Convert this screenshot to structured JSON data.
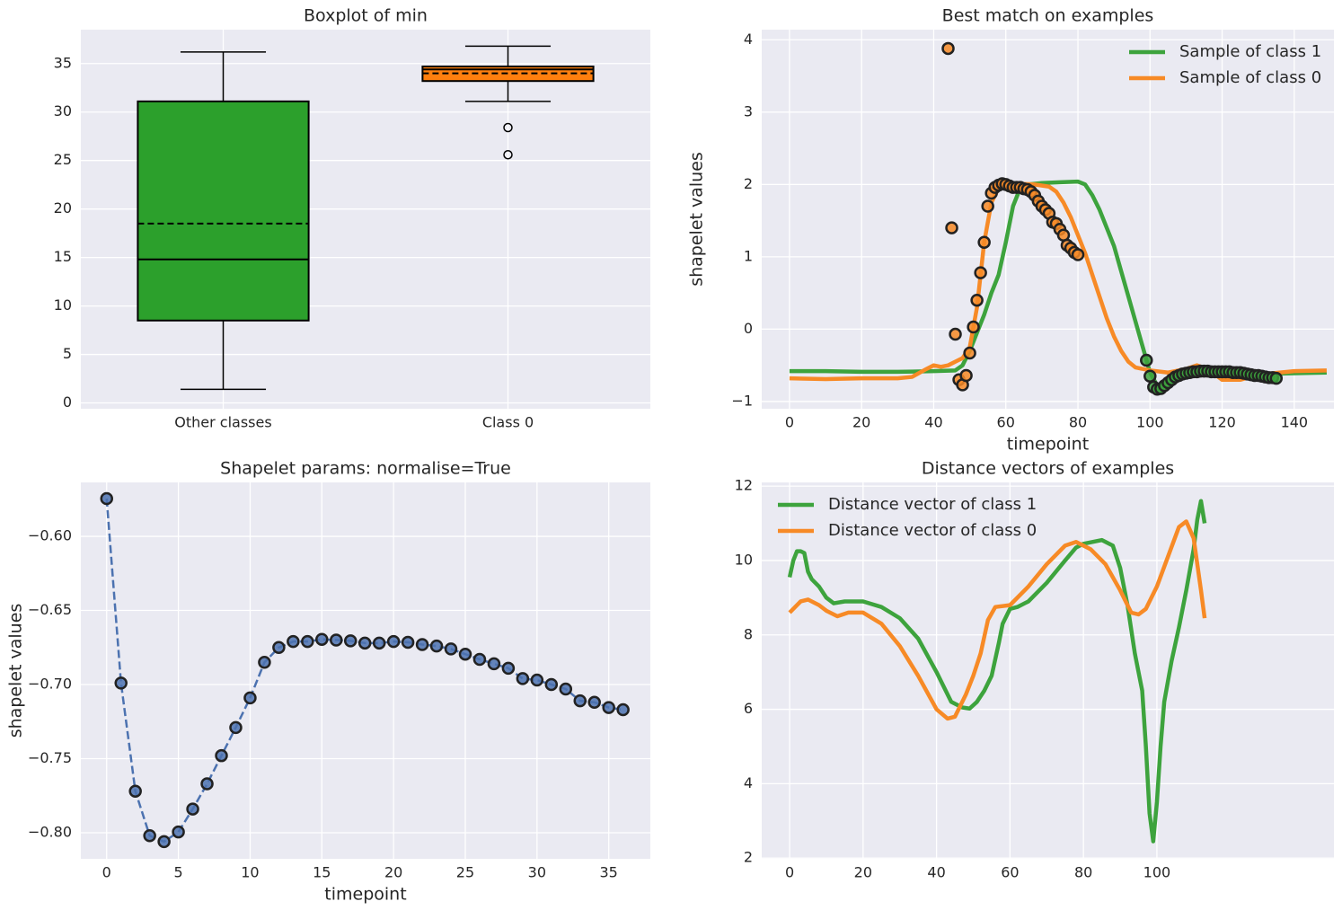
{
  "chart_data": [
    {
      "type": "box",
      "title": "Boxplot of min",
      "categories": [
        "Other classes",
        "Class 0"
      ],
      "boxes": [
        {
          "color": "#2ca02c",
          "whislo": 1.4,
          "q1": 8.5,
          "med": 14.8,
          "mean": 18.5,
          "q3": 31.1,
          "whishi": 36.2,
          "fliers": []
        },
        {
          "color": "#ff7f0e",
          "whislo": 31.1,
          "q1": 33.2,
          "med": 34.4,
          "mean": 34.0,
          "q3": 34.7,
          "whishi": 36.8,
          "fliers": [
            28.4,
            25.6
          ]
        }
      ],
      "ylim": [
        -0.6,
        38.5
      ],
      "yticks": [
        0,
        5,
        10,
        15,
        20,
        25,
        30,
        35
      ],
      "grid": true
    },
    {
      "type": "line",
      "title": "Best match on examples",
      "xlabel": "timepoint",
      "ylabel": "shapelet values",
      "legend": "upper right",
      "series": [
        {
          "name": "Sample of class 1",
          "kind": "line",
          "color": "#3da33d",
          "x": [
            0,
            10,
            20,
            30,
            40,
            46,
            48,
            50,
            52,
            54,
            56,
            58,
            60,
            62,
            64,
            66,
            70,
            75,
            80,
            82,
            84,
            86,
            88,
            90,
            92,
            94,
            96,
            98,
            100,
            102,
            104,
            106,
            110,
            115,
            120,
            125,
            130,
            140,
            149
          ],
          "values": [
            -0.58,
            -0.58,
            -0.59,
            -0.59,
            -0.58,
            -0.57,
            -0.5,
            -0.3,
            -0.05,
            0.2,
            0.5,
            0.75,
            1.2,
            1.7,
            1.95,
            2.0,
            2.02,
            2.03,
            2.04,
            2.0,
            1.85,
            1.65,
            1.4,
            1.15,
            0.8,
            0.45,
            0.1,
            -0.25,
            -0.6,
            -0.78,
            -0.75,
            -0.66,
            -0.62,
            -0.6,
            -0.6,
            -0.61,
            -0.62,
            -0.61,
            -0.6
          ]
        },
        {
          "name": "Sample of class 0",
          "kind": "line",
          "color": "#f78a26",
          "x": [
            0,
            10,
            20,
            30,
            34,
            38,
            40,
            42,
            44,
            46,
            48,
            50,
            52,
            54,
            56,
            58,
            60,
            64,
            68,
            72,
            74,
            76,
            78,
            80,
            82,
            84,
            86,
            88,
            90,
            92,
            94,
            96,
            100,
            105,
            110,
            113,
            116,
            120,
            125,
            130,
            140,
            149
          ],
          "values": [
            -0.68,
            -0.69,
            -0.68,
            -0.68,
            -0.66,
            -0.55,
            -0.5,
            -0.52,
            -0.5,
            -0.45,
            -0.4,
            -0.25,
            0.3,
            1.2,
            1.75,
            1.95,
            2.0,
            2.01,
            2.0,
            1.97,
            1.9,
            1.75,
            1.55,
            1.3,
            1.05,
            0.75,
            0.45,
            0.15,
            -0.1,
            -0.3,
            -0.45,
            -0.53,
            -0.57,
            -0.6,
            -0.55,
            -0.5,
            -0.55,
            -0.7,
            -0.7,
            -0.63,
            -0.58,
            -0.57
          ]
        },
        {
          "kind": "scatter",
          "color": "#f78a26",
          "x": [
            44,
            45,
            46,
            47,
            48,
            49,
            50,
            51,
            52,
            53,
            54,
            55,
            56,
            57,
            58,
            59,
            60,
            61,
            62,
            63,
            64,
            65,
            66,
            67,
            68,
            69,
            70,
            71,
            72,
            73,
            74,
            75,
            76,
            77,
            78,
            79,
            80
          ],
          "values": [
            3.88,
            1.4,
            -0.07,
            -0.7,
            -0.77,
            -0.64,
            -0.33,
            0.03,
            0.4,
            0.78,
            1.2,
            1.7,
            1.88,
            1.96,
            1.99,
            2.01,
            2.0,
            1.98,
            1.96,
            1.96,
            1.96,
            1.94,
            1.93,
            1.9,
            1.85,
            1.77,
            1.7,
            1.65,
            1.6,
            1.48,
            1.46,
            1.38,
            1.3,
            1.16,
            1.12,
            1.06,
            1.03
          ]
        },
        {
          "kind": "scatter",
          "color": "#3da33d",
          "x": [
            99,
            100,
            101,
            102,
            103,
            104,
            105,
            106,
            107,
            108,
            109,
            110,
            111,
            112,
            113,
            114,
            115,
            116,
            117,
            118,
            119,
            120,
            121,
            122,
            123,
            124,
            125,
            126,
            127,
            128,
            129,
            130,
            131,
            132,
            133,
            134,
            135
          ],
          "values": [
            -0.43,
            -0.65,
            -0.8,
            -0.83,
            -0.82,
            -0.78,
            -0.74,
            -0.7,
            -0.66,
            -0.64,
            -0.62,
            -0.61,
            -0.6,
            -0.59,
            -0.59,
            -0.58,
            -0.58,
            -0.58,
            -0.59,
            -0.59,
            -0.59,
            -0.59,
            -0.59,
            -0.59,
            -0.6,
            -0.6,
            -0.6,
            -0.61,
            -0.62,
            -0.63,
            -0.64,
            -0.64,
            -0.65,
            -0.66,
            -0.67,
            -0.67,
            -0.68
          ]
        }
      ],
      "xlim": [
        -7.7,
        151
      ],
      "xticks": [
        0,
        20,
        40,
        60,
        80,
        100,
        120,
        140
      ],
      "ylim": [
        -1.1,
        4.14
      ],
      "yticks": [
        {
          "value": -1,
          "label": "−1"
        },
        0,
        1,
        2,
        3,
        4
      ],
      "grid": true
    },
    {
      "type": "line",
      "title": "Shapelet params: normalise=True",
      "xlabel": "timepoint",
      "ylabel": "shapelet values",
      "series": [
        {
          "kind": "line",
          "linestyle": "dashed",
          "marker": "o",
          "color": "#4c72b0",
          "x": [
            0,
            1,
            2,
            3,
            4,
            5,
            6,
            7,
            8,
            9,
            10,
            11,
            12,
            13,
            14,
            15,
            16,
            17,
            18,
            19,
            20,
            21,
            22,
            23,
            24,
            25,
            26,
            27,
            28,
            29,
            30,
            31,
            32,
            33,
            34,
            35,
            36
          ],
          "values": [
            -0.5745,
            -0.699,
            -0.772,
            -0.802,
            -0.806,
            -0.7995,
            -0.784,
            -0.767,
            -0.748,
            -0.729,
            -0.709,
            -0.685,
            -0.675,
            -0.671,
            -0.671,
            -0.6695,
            -0.67,
            -0.6705,
            -0.672,
            -0.672,
            -0.671,
            -0.6715,
            -0.673,
            -0.674,
            -0.676,
            -0.6795,
            -0.683,
            -0.686,
            -0.689,
            -0.696,
            -0.697,
            -0.7,
            -0.703,
            -0.711,
            -0.712,
            -0.7155,
            -0.717
          ]
        }
      ],
      "xlim": [
        -1.8,
        37.9
      ],
      "xticks": [
        0,
        5,
        10,
        15,
        20,
        25,
        30,
        35
      ],
      "ylim": [
        -0.8176,
        -0.5636
      ],
      "yticks": [
        {
          "value": -0.8,
          "label": "−0.80"
        },
        {
          "value": -0.75,
          "label": "−0.75"
        },
        {
          "value": -0.7,
          "label": "−0.70"
        },
        {
          "value": -0.65,
          "label": "−0.65"
        },
        {
          "value": -0.6,
          "label": "−0.60"
        }
      ],
      "grid": true
    },
    {
      "type": "line",
      "title": "Distance vectors of examples",
      "legend": "upper left",
      "series": [
        {
          "name": "Distance vector of class 1",
          "kind": "line",
          "color": "#3da33d",
          "x": [
            0,
            1,
            2,
            3,
            4,
            5,
            6,
            8,
            10,
            12,
            15,
            20,
            25,
            30,
            35,
            40,
            44,
            47,
            49,
            51,
            53,
            55,
            57,
            58,
            60,
            62,
            65,
            70,
            75,
            78,
            80,
            85,
            88,
            90,
            92,
            94,
            96,
            97,
            98,
            99,
            100,
            101,
            102,
            104,
            106,
            108,
            110,
            111,
            112,
            113
          ],
          "values": [
            9.55,
            10.0,
            10.25,
            10.25,
            10.2,
            9.7,
            9.5,
            9.3,
            9.0,
            8.85,
            8.9,
            8.9,
            8.75,
            8.45,
            7.9,
            7.0,
            6.2,
            6.05,
            6.02,
            6.2,
            6.5,
            6.9,
            7.8,
            8.3,
            8.7,
            8.75,
            8.9,
            9.4,
            10.0,
            10.35,
            10.45,
            10.55,
            10.4,
            9.8,
            8.8,
            7.5,
            6.5,
            5.0,
            3.2,
            2.45,
            3.5,
            5.0,
            6.2,
            7.3,
            8.2,
            9.2,
            10.3,
            11.1,
            11.6,
            11.0
          ]
        },
        {
          "name": "Distance vector of class 0",
          "kind": "line",
          "color": "#f78a26",
          "x": [
            0,
            3,
            5,
            8,
            10,
            13,
            16,
            20,
            25,
            30,
            35,
            40,
            43,
            45,
            48,
            50,
            52,
            54,
            56,
            60,
            65,
            70,
            75,
            78,
            82,
            86,
            90,
            93,
            95,
            97,
            100,
            103,
            106,
            108,
            110,
            112,
            113
          ],
          "values": [
            8.6,
            8.9,
            8.95,
            8.8,
            8.65,
            8.5,
            8.6,
            8.6,
            8.3,
            7.7,
            6.9,
            6.0,
            5.75,
            5.8,
            6.4,
            6.9,
            7.5,
            8.4,
            8.75,
            8.8,
            9.3,
            9.9,
            10.4,
            10.5,
            10.3,
            9.9,
            9.2,
            8.6,
            8.55,
            8.7,
            9.3,
            10.1,
            10.9,
            11.05,
            10.6,
            9.2,
            8.45
          ]
        }
      ],
      "xlim": [
        -7.6,
        148.2
      ],
      "xticks": [
        0,
        20,
        40,
        60,
        80,
        100
      ],
      "ylim": [
        1.98,
        12.1
      ],
      "yticks": [
        2,
        4,
        6,
        8,
        10,
        12
      ],
      "grid": true
    }
  ]
}
